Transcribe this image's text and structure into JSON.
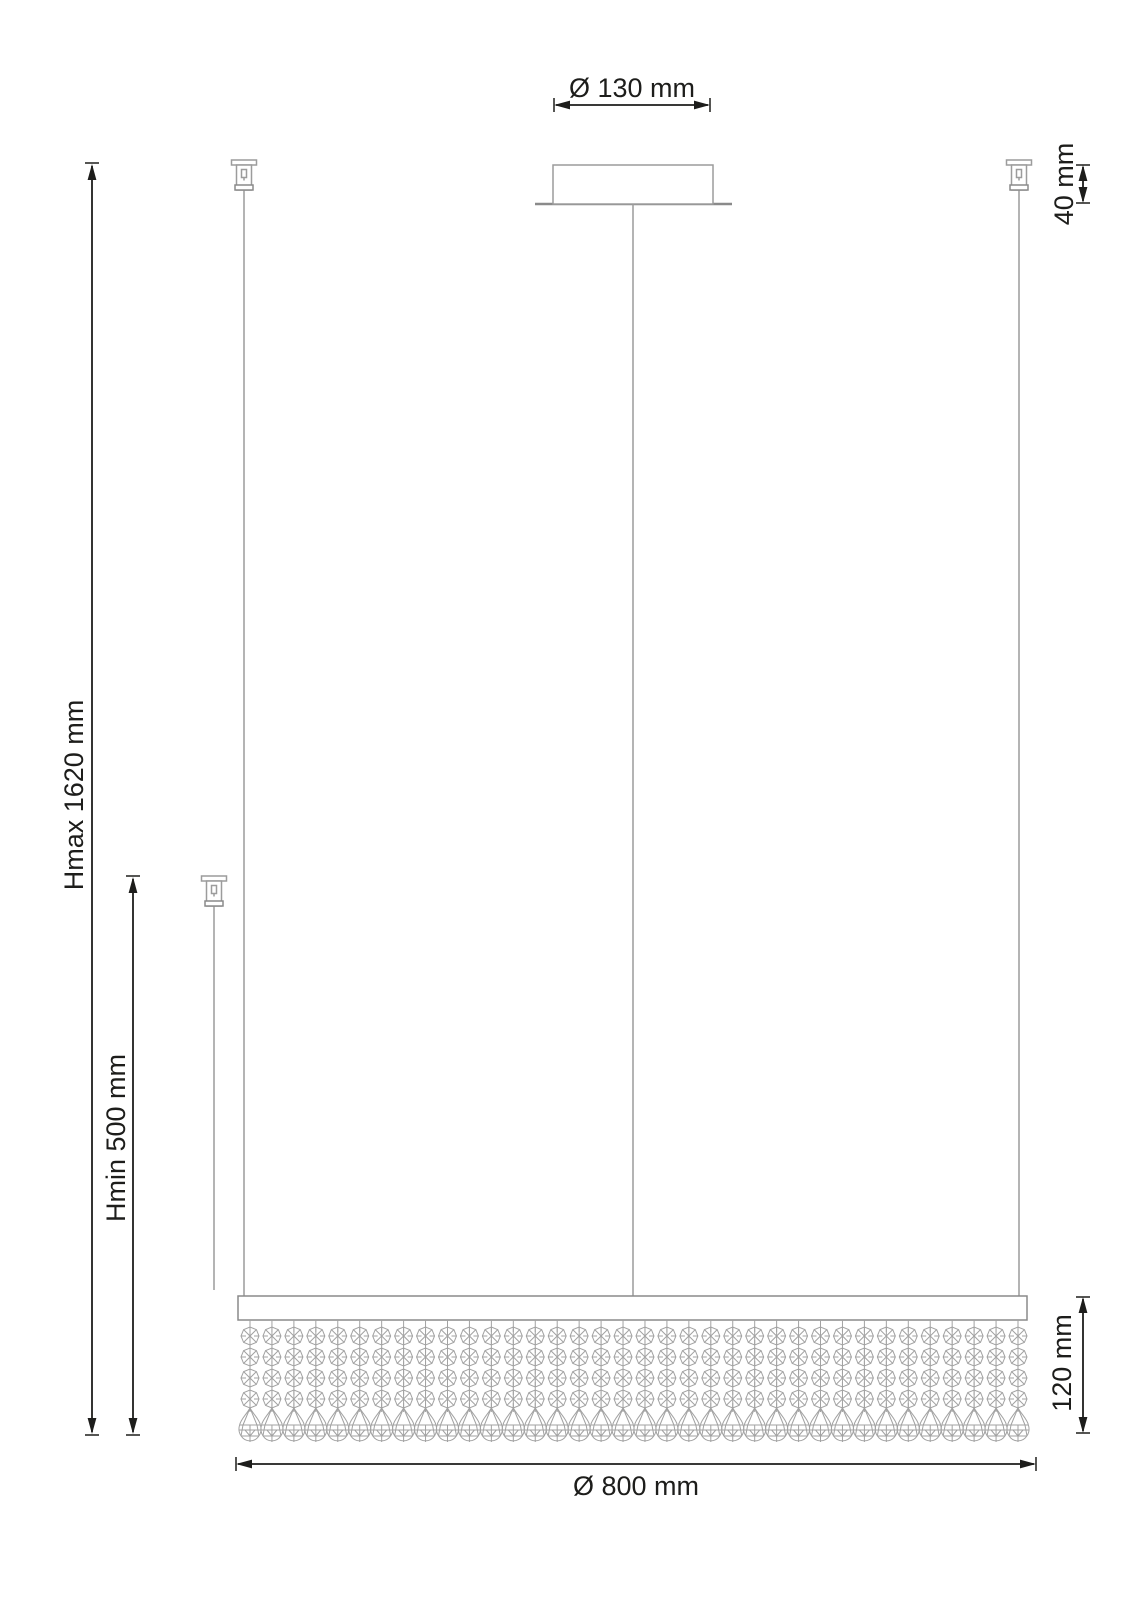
{
  "labels": {
    "canopy_diameter": "Ø 130 mm",
    "canopy_height": "40 mm",
    "height_max": "Hmax 1620 mm",
    "height_min": "Hmin 500 mm",
    "fixture_height": "120 mm",
    "fixture_diameter": "Ø 800 mm"
  },
  "figure": {
    "type": "technical-dimension-drawing",
    "subject": "linear crystal pendant lamp, front elevation",
    "strand_count": 36,
    "beads_per_strand": 4,
    "drops_per_strand": 1
  },
  "colors": {
    "dimension": "#1d1d1b",
    "outline": "#9c9c9c",
    "outline_dark": "#8a8a8a",
    "crystal": "#a2a2a2",
    "background": "#ffffff"
  }
}
